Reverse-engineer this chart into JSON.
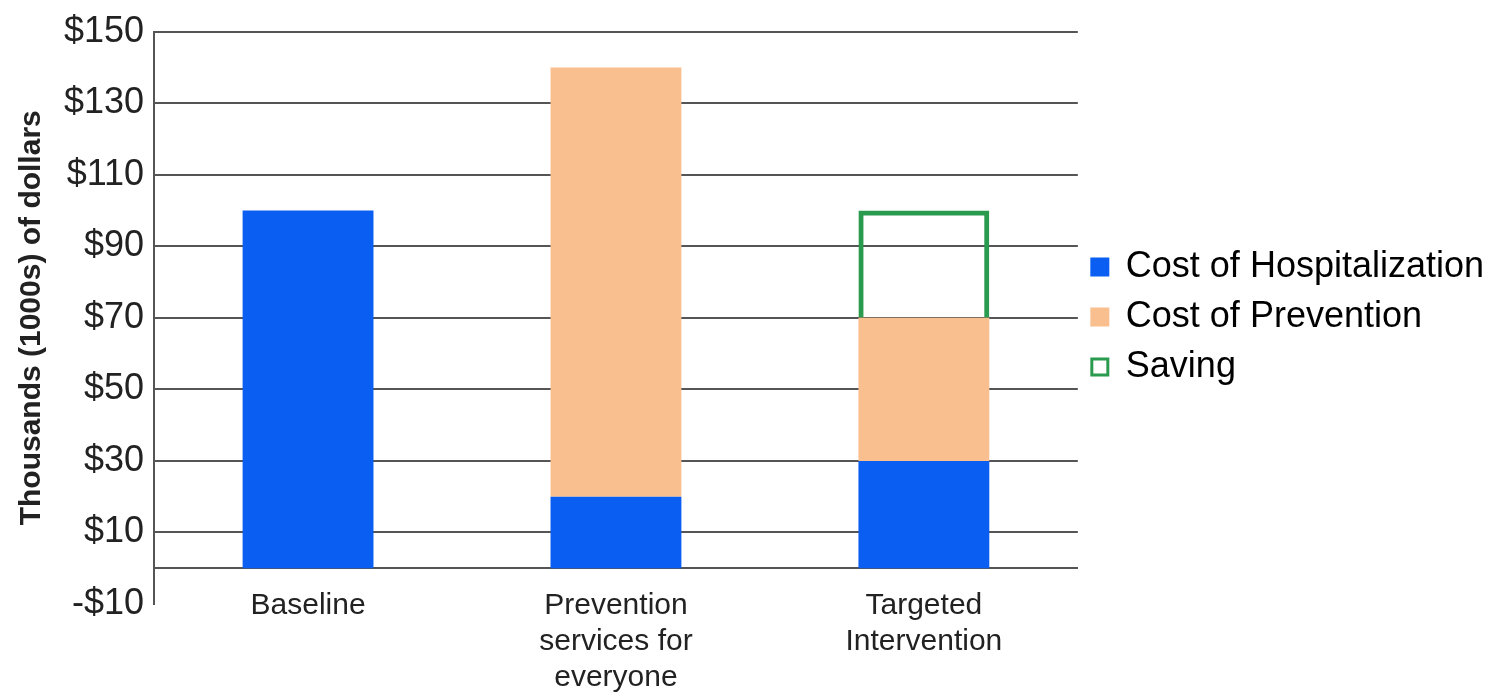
{
  "chart_data": {
    "type": "bar",
    "stacked": true,
    "ylabel": "Thousands (1000s) of dollars",
    "categories": [
      "Baseline",
      "Prevention services for everyone",
      "Targeted Intervention"
    ],
    "series": [
      {
        "name": "Cost of Hospitalization",
        "color": "#0a5ef2",
        "values": [
          100,
          20,
          30
        ]
      },
      {
        "name": "Cost of Prevention",
        "color": "#f9bf8f",
        "values": [
          null,
          120,
          40
        ]
      },
      {
        "name": "Saving",
        "color": "#2a9a4e",
        "values": [
          null,
          null,
          30
        ]
      }
    ],
    "ylim": [
      -10,
      150
    ],
    "yticks": [
      {
        "value": -10,
        "label": "-$10"
      },
      {
        "value": 10,
        "label": "$10"
      },
      {
        "value": 30,
        "label": "$30"
      },
      {
        "value": 50,
        "label": "$50"
      },
      {
        "value": 70,
        "label": "$70"
      },
      {
        "value": 90,
        "label": "$90"
      },
      {
        "value": 110,
        "label": "$110"
      },
      {
        "value": 130,
        "label": "$130"
      },
      {
        "value": 150,
        "label": "$150"
      }
    ],
    "grid": "y",
    "legend": "right"
  }
}
